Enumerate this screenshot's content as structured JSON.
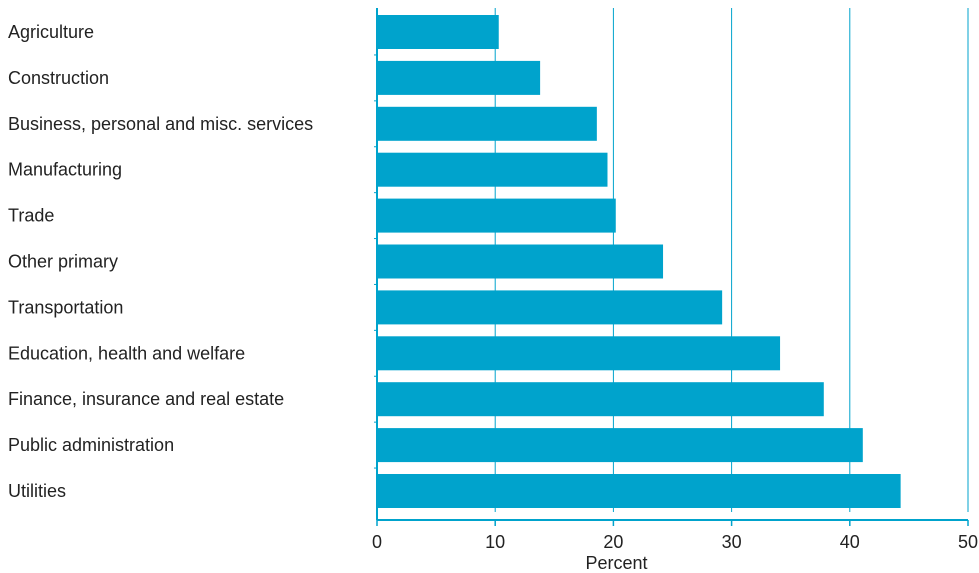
{
  "chart_data": {
    "type": "bar",
    "orientation": "horizontal",
    "categories": [
      "Agriculture",
      "Construction",
      "Business, personal and misc. services",
      "Manufacturing",
      "Trade",
      "Other primary",
      "Transportation",
      "Education, health and welfare",
      "Finance, insurance and real estate",
      "Public administration",
      "Utilities"
    ],
    "values": [
      10.3,
      13.8,
      18.6,
      19.5,
      20.2,
      24.2,
      29.2,
      34.1,
      37.8,
      41.1,
      44.3
    ],
    "title": "",
    "xlabel": "Percent",
    "ylabel": "",
    "xlim": [
      0,
      50
    ],
    "xticks": [
      0,
      10,
      20,
      30,
      40,
      50
    ],
    "grid": "vertical",
    "legend": "none"
  },
  "colors": {
    "bar": "#00A3CC",
    "grid": "#00A3CC",
    "axis": "#00A3CC",
    "text": "#222222"
  }
}
